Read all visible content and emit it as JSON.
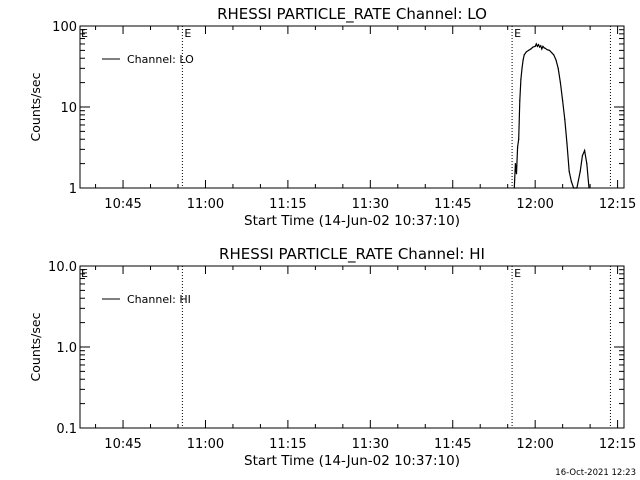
{
  "chart_data": [
    {
      "type": "line",
      "title": "RHESSI PARTICLE_RATE Channel: LO",
      "xlabel": "Start Time (14-Jun-02 10:37:10)",
      "ylabel": "Counts/sec",
      "yscale": "log",
      "ylim": [
        1,
        100
      ],
      "xlim": [
        "10:37:10",
        "12:16:10"
      ],
      "x_ticks": [
        "10:45",
        "11:00",
        "11:15",
        "11:30",
        "11:45",
        "12:00",
        "12:15"
      ],
      "y_ticks": [
        "1",
        "10",
        "100"
      ],
      "legend": {
        "position": "top-left",
        "entries": [
          "Channel: LO"
        ]
      },
      "event_lines": [
        {
          "time": "10:55:48",
          "label": "E"
        },
        {
          "time": "11:55:48",
          "label": "E"
        },
        {
          "time": "12:13:42",
          "label": ""
        }
      ],
      "left_marker": "E",
      "series": [
        {
          "name": "Channel: LO",
          "points": [
            [
              "11:56:12",
              1.0
            ],
            [
              "11:56:24",
              2.0
            ],
            [
              "11:56:36",
              1.5
            ],
            [
              "11:56:48",
              3.2
            ],
            [
              "11:57:00",
              4.0
            ],
            [
              "11:57:12",
              12
            ],
            [
              "11:57:24",
              22
            ],
            [
              "11:57:36",
              30
            ],
            [
              "11:57:48",
              38
            ],
            [
              "11:58:00",
              44
            ],
            [
              "11:58:24",
              48
            ],
            [
              "11:58:48",
              50
            ],
            [
              "11:59:12",
              52
            ],
            [
              "11:59:36",
              55
            ],
            [
              "12:00:00",
              56
            ],
            [
              "12:00:12",
              60
            ],
            [
              "12:00:24",
              56
            ],
            [
              "12:00:36",
              59
            ],
            [
              "12:00:48",
              55
            ],
            [
              "12:01:00",
              57
            ],
            [
              "12:01:12",
              52
            ],
            [
              "12:01:24",
              56
            ],
            [
              "12:01:36",
              54
            ],
            [
              "12:01:48",
              53
            ],
            [
              "12:02:12",
              51
            ],
            [
              "12:02:36",
              50
            ],
            [
              "12:03:00",
              47
            ],
            [
              "12:03:24",
              44
            ],
            [
              "12:03:48",
              38
            ],
            [
              "12:04:12",
              30
            ],
            [
              "12:04:36",
              20
            ],
            [
              "12:05:00",
              12
            ],
            [
              "12:05:24",
              7
            ],
            [
              "12:05:48",
              3.5
            ],
            [
              "12:06:12",
              1.6
            ],
            [
              "12:06:36",
              1.2
            ],
            [
              "12:07:00",
              1.0
            ],
            [
              "12:07:36",
              1.0
            ],
            [
              "12:08:12",
              1.6
            ],
            [
              "12:08:36",
              2.5
            ],
            [
              "12:09:00",
              2.9
            ],
            [
              "12:09:24",
              2.0
            ],
            [
              "12:09:48",
              1.0
            ]
          ]
        }
      ]
    },
    {
      "type": "line",
      "title": "RHESSI PARTICLE_RATE Channel: HI",
      "xlabel": "Start Time (14-Jun-02 10:37:10)",
      "ylabel": "Counts/sec",
      "yscale": "log",
      "ylim": [
        0.1,
        10.0
      ],
      "xlim": [
        "10:37:10",
        "12:16:10"
      ],
      "x_ticks": [
        "10:45",
        "11:00",
        "11:15",
        "11:30",
        "11:45",
        "12:00",
        "12:15"
      ],
      "y_ticks": [
        "0.1",
        "1.0",
        "10.0"
      ],
      "legend": {
        "position": "top-left",
        "entries": [
          "Channel: HI"
        ]
      },
      "event_lines": [
        {
          "time": "10:55:48",
          "label": ""
        },
        {
          "time": "11:55:48",
          "label": "E"
        },
        {
          "time": "12:13:42",
          "label": ""
        }
      ],
      "left_marker": "E",
      "series": [
        {
          "name": "Channel: HI",
          "points": []
        }
      ]
    }
  ],
  "footer": {
    "timestamp": "16-Oct-2021 12:23"
  }
}
